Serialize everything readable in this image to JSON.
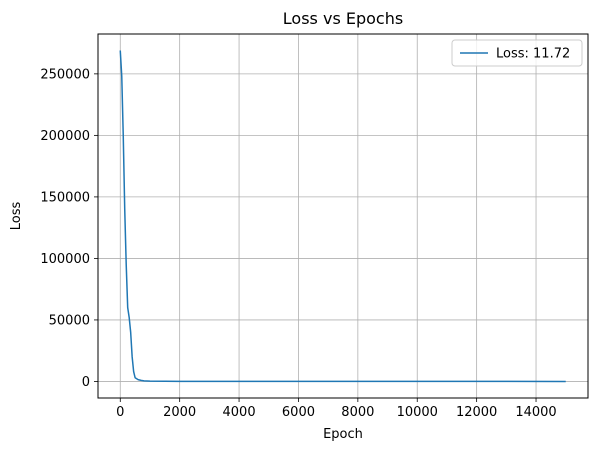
{
  "chart_data": {
    "type": "line",
    "title": "Loss vs Epochs",
    "xlabel": "Epoch",
    "ylabel": "Loss",
    "xlim": [
      -750,
      15750
    ],
    "ylim": [
      -13450,
      282400
    ],
    "xticks": [
      0,
      2000,
      4000,
      6000,
      8000,
      10000,
      12000,
      14000
    ],
    "yticks": [
      0,
      50000,
      100000,
      150000,
      200000,
      250000
    ],
    "xtick_labels": [
      "0",
      "2000",
      "4000",
      "6000",
      "8000",
      "10000",
      "12000",
      "14000"
    ],
    "ytick_labels": [
      "0",
      "50000",
      "100000",
      "150000",
      "200000",
      "250000"
    ],
    "grid": true,
    "legend_position": "top-right",
    "series": [
      {
        "name": "Loss: 11.72",
        "color": "#1f77b4",
        "x": [
          0,
          50,
          100,
          150,
          200,
          250,
          300,
          350,
          400,
          450,
          500,
          600,
          700,
          800,
          1000,
          1500,
          2000,
          3000,
          5000,
          8000,
          11000,
          15000
        ],
        "y": [
          269000,
          248000,
          200000,
          140000,
          95000,
          60000,
          52000,
          40000,
          20000,
          8000,
          3000,
          1500,
          900,
          500,
          300,
          150,
          100,
          50,
          30,
          20,
          15,
          11.72
        ]
      }
    ]
  }
}
